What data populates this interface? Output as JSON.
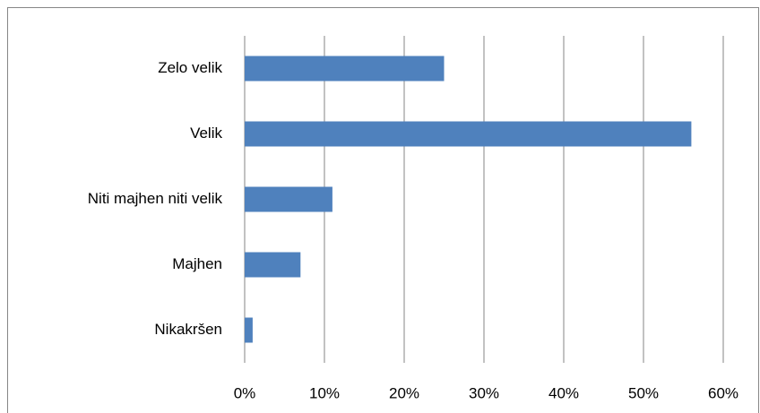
{
  "chart_data": {
    "type": "bar",
    "orientation": "horizontal",
    "categories": [
      "Zelo velik",
      "Velik",
      "Niti majhen niti velik",
      "Majhen",
      "Nikakršen"
    ],
    "values": [
      25,
      56,
      11,
      7,
      1
    ],
    "color": "#4f81bd",
    "xlim": [
      0,
      60
    ],
    "xticks": [
      {
        "value": 0,
        "label": "0%"
      },
      {
        "value": 10,
        "label": "10%"
      },
      {
        "value": 20,
        "label": "20%"
      },
      {
        "value": 30,
        "label": "30%"
      },
      {
        "value": 40,
        "label": "40%"
      },
      {
        "value": 50,
        "label": "50%"
      },
      {
        "value": 60,
        "label": "60%"
      }
    ],
    "grid": true
  }
}
